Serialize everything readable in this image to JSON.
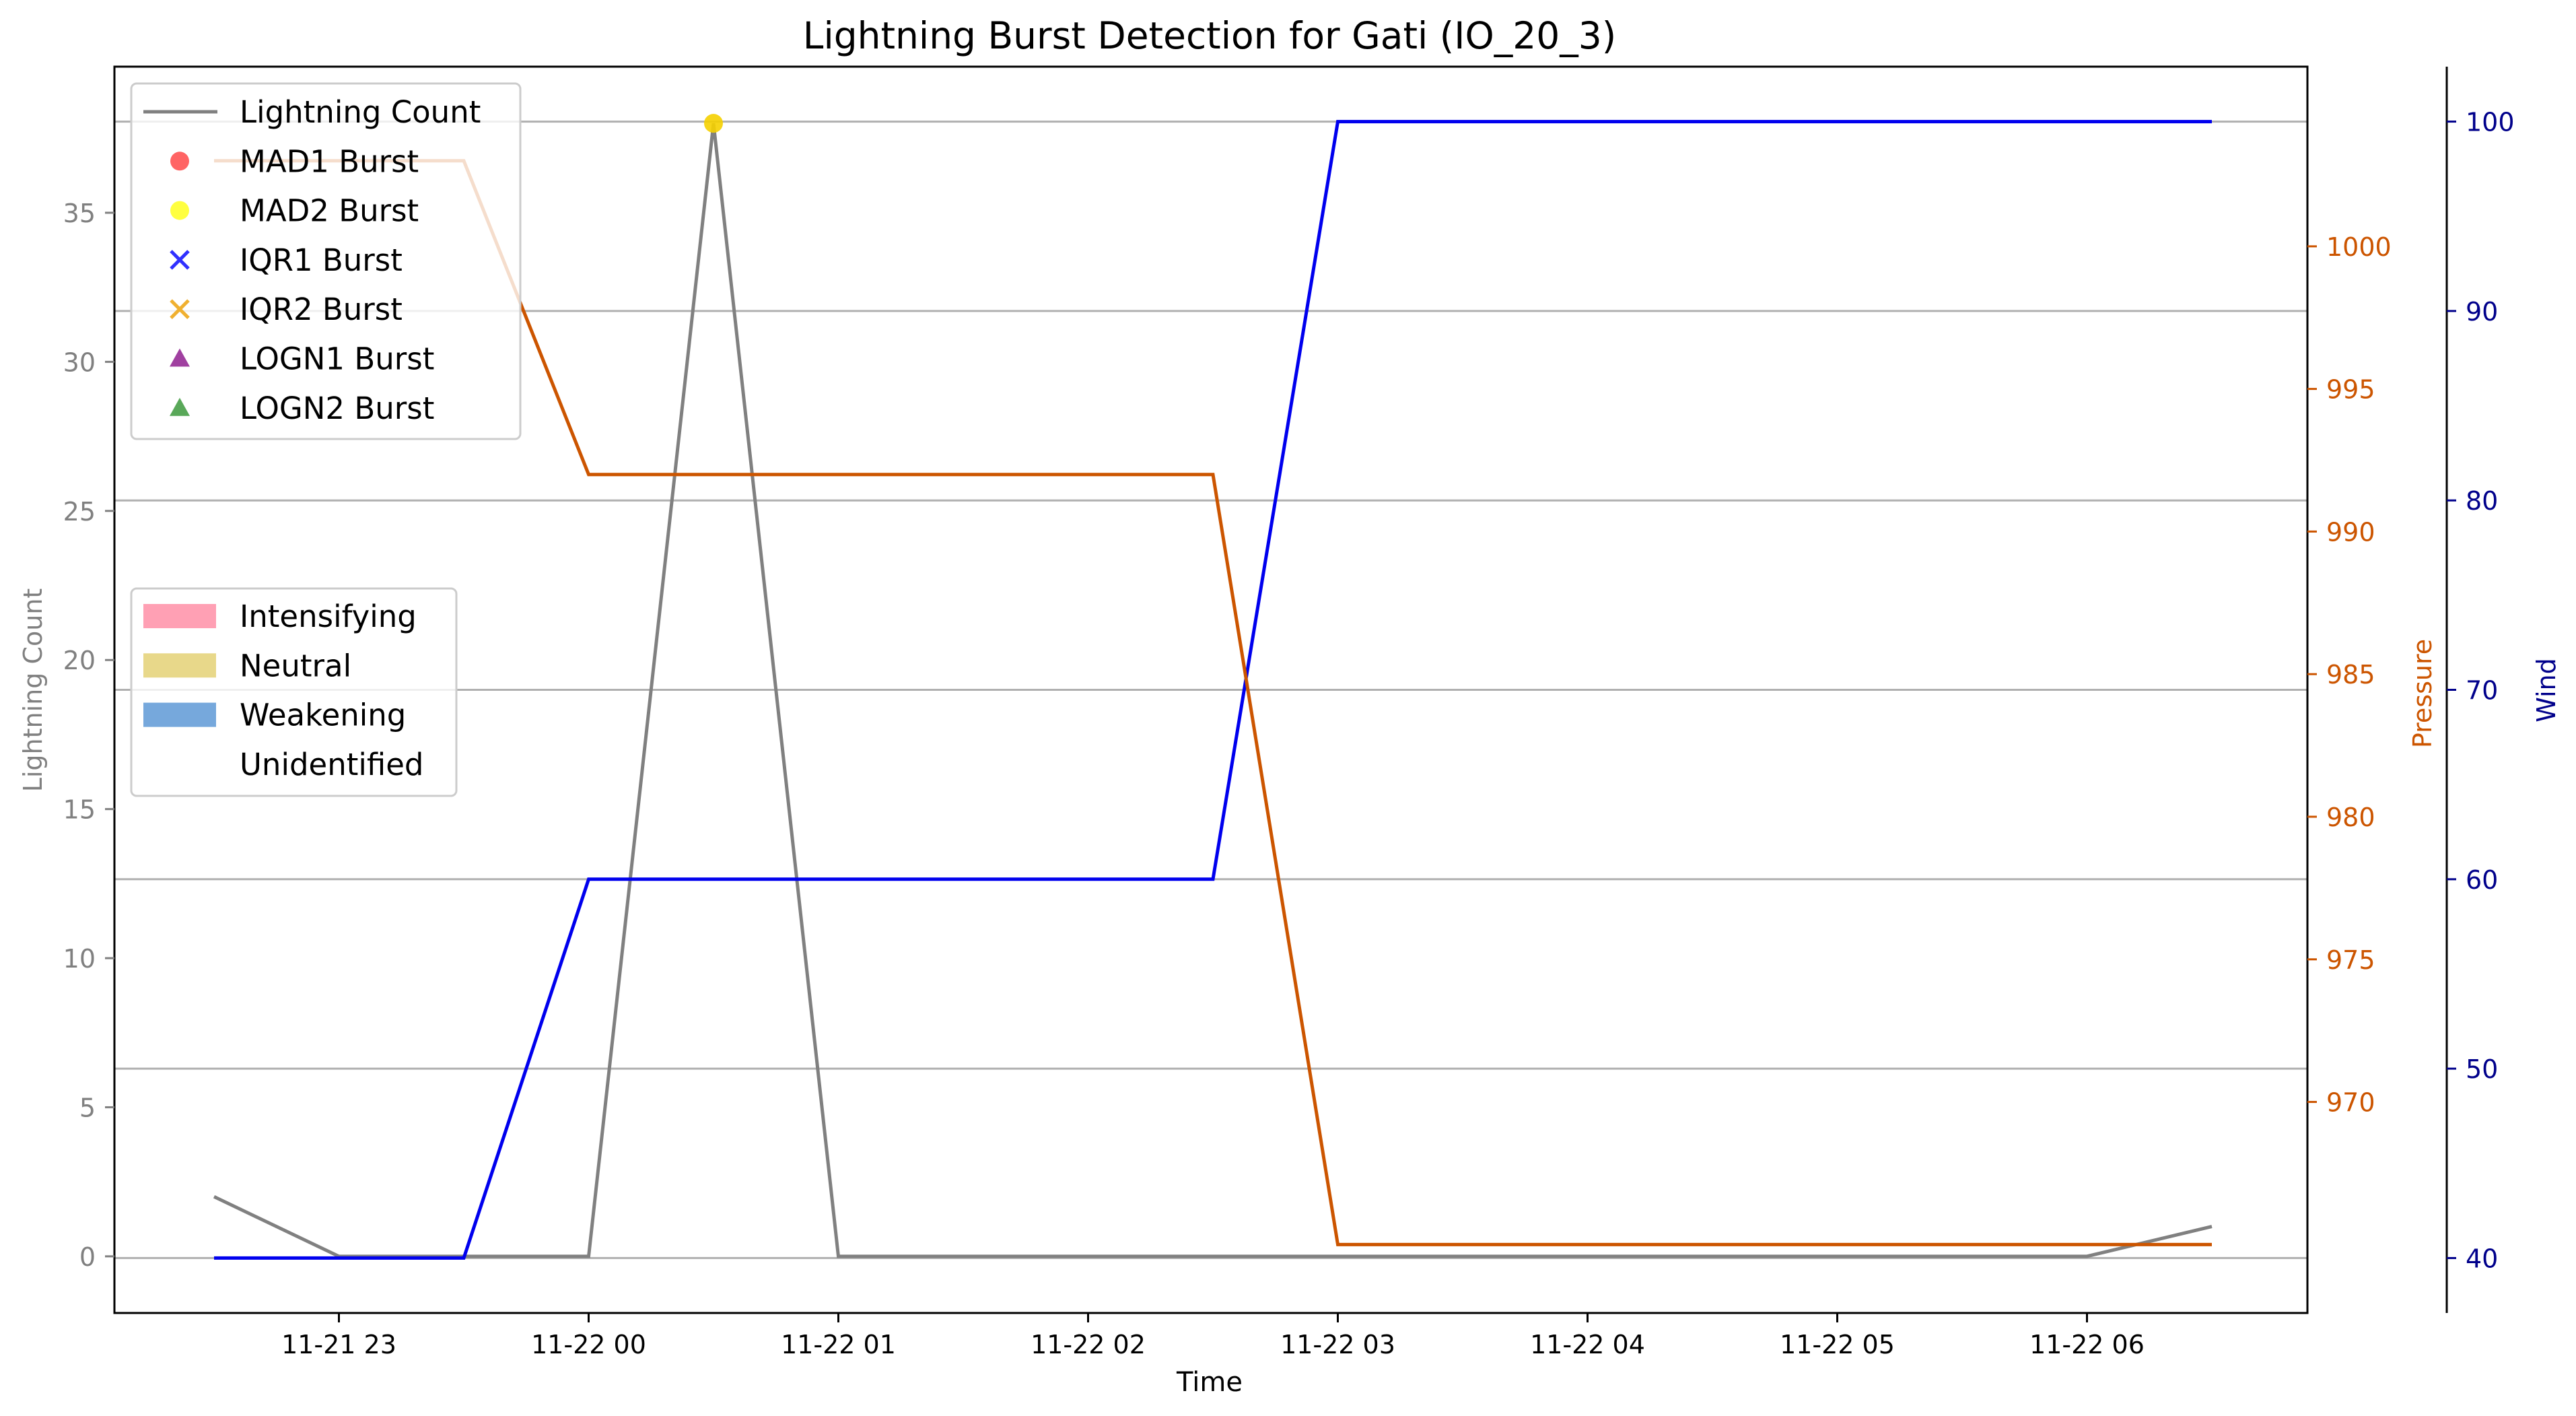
{
  "chart_data": {
    "type": "line",
    "title": "Lightning Burst Detection for Gati (IO_20_3)",
    "xlabel": "Time",
    "x": [
      "11-21 22:30",
      "11-21 23:00",
      "11-21 23:30",
      "11-22 00:00",
      "11-22 00:30",
      "11-22 01:00",
      "11-22 01:30",
      "11-22 02:00",
      "11-22 02:30",
      "11-22 03:00",
      "11-22 03:30",
      "11-22 04:00",
      "11-22 04:30",
      "11-22 05:00",
      "11-22 05:30",
      "11-22 06:00",
      "11-22 06:30"
    ],
    "xticks": [
      "11-21 23",
      "11-22 00",
      "11-22 01",
      "11-22 02",
      "11-22 03",
      "11-22 04",
      "11-22 05",
      "11-22 06"
    ],
    "axes": {
      "left": {
        "label": "Lightning Count",
        "ylim": [
          -1.9,
          39.9
        ],
        "ticks": [
          0,
          5,
          10,
          15,
          20,
          25,
          30,
          35
        ],
        "color": "#808080"
      },
      "right1": {
        "label": "Pressure",
        "ylim": [
          962.6,
          1006.3
        ],
        "ticks": [
          970,
          975,
          980,
          985,
          990,
          995,
          1000
        ],
        "color": "#cc5500"
      },
      "right2": {
        "label": "Wind",
        "ylim": [
          37.1,
          102.9
        ],
        "ticks": [
          40,
          50,
          60,
          70,
          80,
          90,
          100
        ],
        "color": "#00008b"
      }
    },
    "series": [
      {
        "name": "Lightning Count",
        "axis": "left",
        "color": "#808080",
        "values": [
          2,
          0,
          0,
          0,
          38,
          0,
          0,
          0,
          0,
          0,
          0,
          0,
          0,
          0,
          0,
          0,
          1
        ]
      },
      {
        "axis": "right1",
        "color": "#cc5500",
        "values": [
          1003,
          1003,
          1003,
          992,
          992,
          992,
          992,
          992,
          992,
          965,
          965,
          965,
          965,
          965,
          965,
          965,
          965
        ]
      },
      {
        "axis": "right2",
        "color": "#0000ee",
        "values": [
          40,
          40,
          40,
          60,
          60,
          60,
          60,
          60,
          60,
          100,
          100,
          100,
          100,
          100,
          100,
          100,
          100
        ]
      }
    ],
    "bursts": [
      {
        "type": "MAD2 Burst",
        "x": "11-22 00:30",
        "y": 38,
        "color": "#f5d000"
      }
    ],
    "hgrid_wind": [
      40,
      50,
      60,
      70,
      80,
      90,
      100
    ],
    "legend1": {
      "placement": "upper-left",
      "entries": [
        {
          "label": "Lightning Count",
          "marker": "line",
          "color": "#808080"
        },
        {
          "label": "MAD1 Burst",
          "marker": "circle",
          "color": "#ff3030"
        },
        {
          "label": "MAD2 Burst",
          "marker": "circle",
          "color": "#ffff00"
        },
        {
          "label": "IQR1 Burst",
          "marker": "x",
          "color": "#3030ff"
        },
        {
          "label": "IQR2 Burst",
          "marker": "x",
          "color": "#f0b030"
        },
        {
          "label": "LOGN1 Burst",
          "marker": "triangle",
          "color": "#800080"
        },
        {
          "label": "LOGN2 Burst",
          "marker": "triangle",
          "color": "#228b22"
        }
      ]
    },
    "legend2": {
      "placement": "center-left",
      "entries": [
        {
          "label": "Intensifying",
          "color": "#ffa0b4"
        },
        {
          "label": "Neutral",
          "color": "#e8d88a"
        },
        {
          "label": "Weakening",
          "color": "#76a8dc"
        },
        {
          "label": "Unidentified",
          "color": "#ffffff"
        }
      ]
    }
  }
}
